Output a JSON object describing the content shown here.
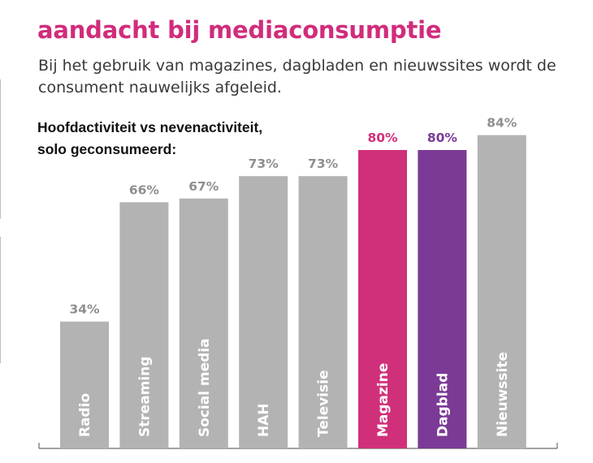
{
  "header": {
    "title": "aandacht bij mediaconsumptie",
    "subtitle": "Bij het gebruik van magazines, dagbladen en nieuwssites wordt de consument nauwelijks afgeleid.",
    "chart_label_line1": "Hoofdactiviteit vs nevenactiviteit,",
    "chart_label_line2": "solo geconsumeerd:"
  },
  "colors": {
    "title": "#d12c7c",
    "bar_default": "#b3b3b3",
    "label_default": "#8f8f8f",
    "magazine": "#d0307a",
    "dagblad": "#7b3a96"
  },
  "chart_data": {
    "type": "bar",
    "categories": [
      "Radio",
      "Streaming",
      "Social media",
      "HAH",
      "Televisie",
      "Magazine",
      "Dagblad",
      "Nieuwssite"
    ],
    "values": [
      34,
      66,
      67,
      73,
      73,
      80,
      80,
      84
    ],
    "value_labels": [
      "34%",
      "66%",
      "67%",
      "73%",
      "73%",
      "80%",
      "80%",
      "84%"
    ],
    "highlight": {
      "Magazine": "#d0307a",
      "Dagblad": "#7b3a96"
    },
    "title": "",
    "xlabel": "",
    "ylabel": "",
    "ylim": [
      0,
      100
    ],
    "grid": false,
    "legend": "none"
  }
}
